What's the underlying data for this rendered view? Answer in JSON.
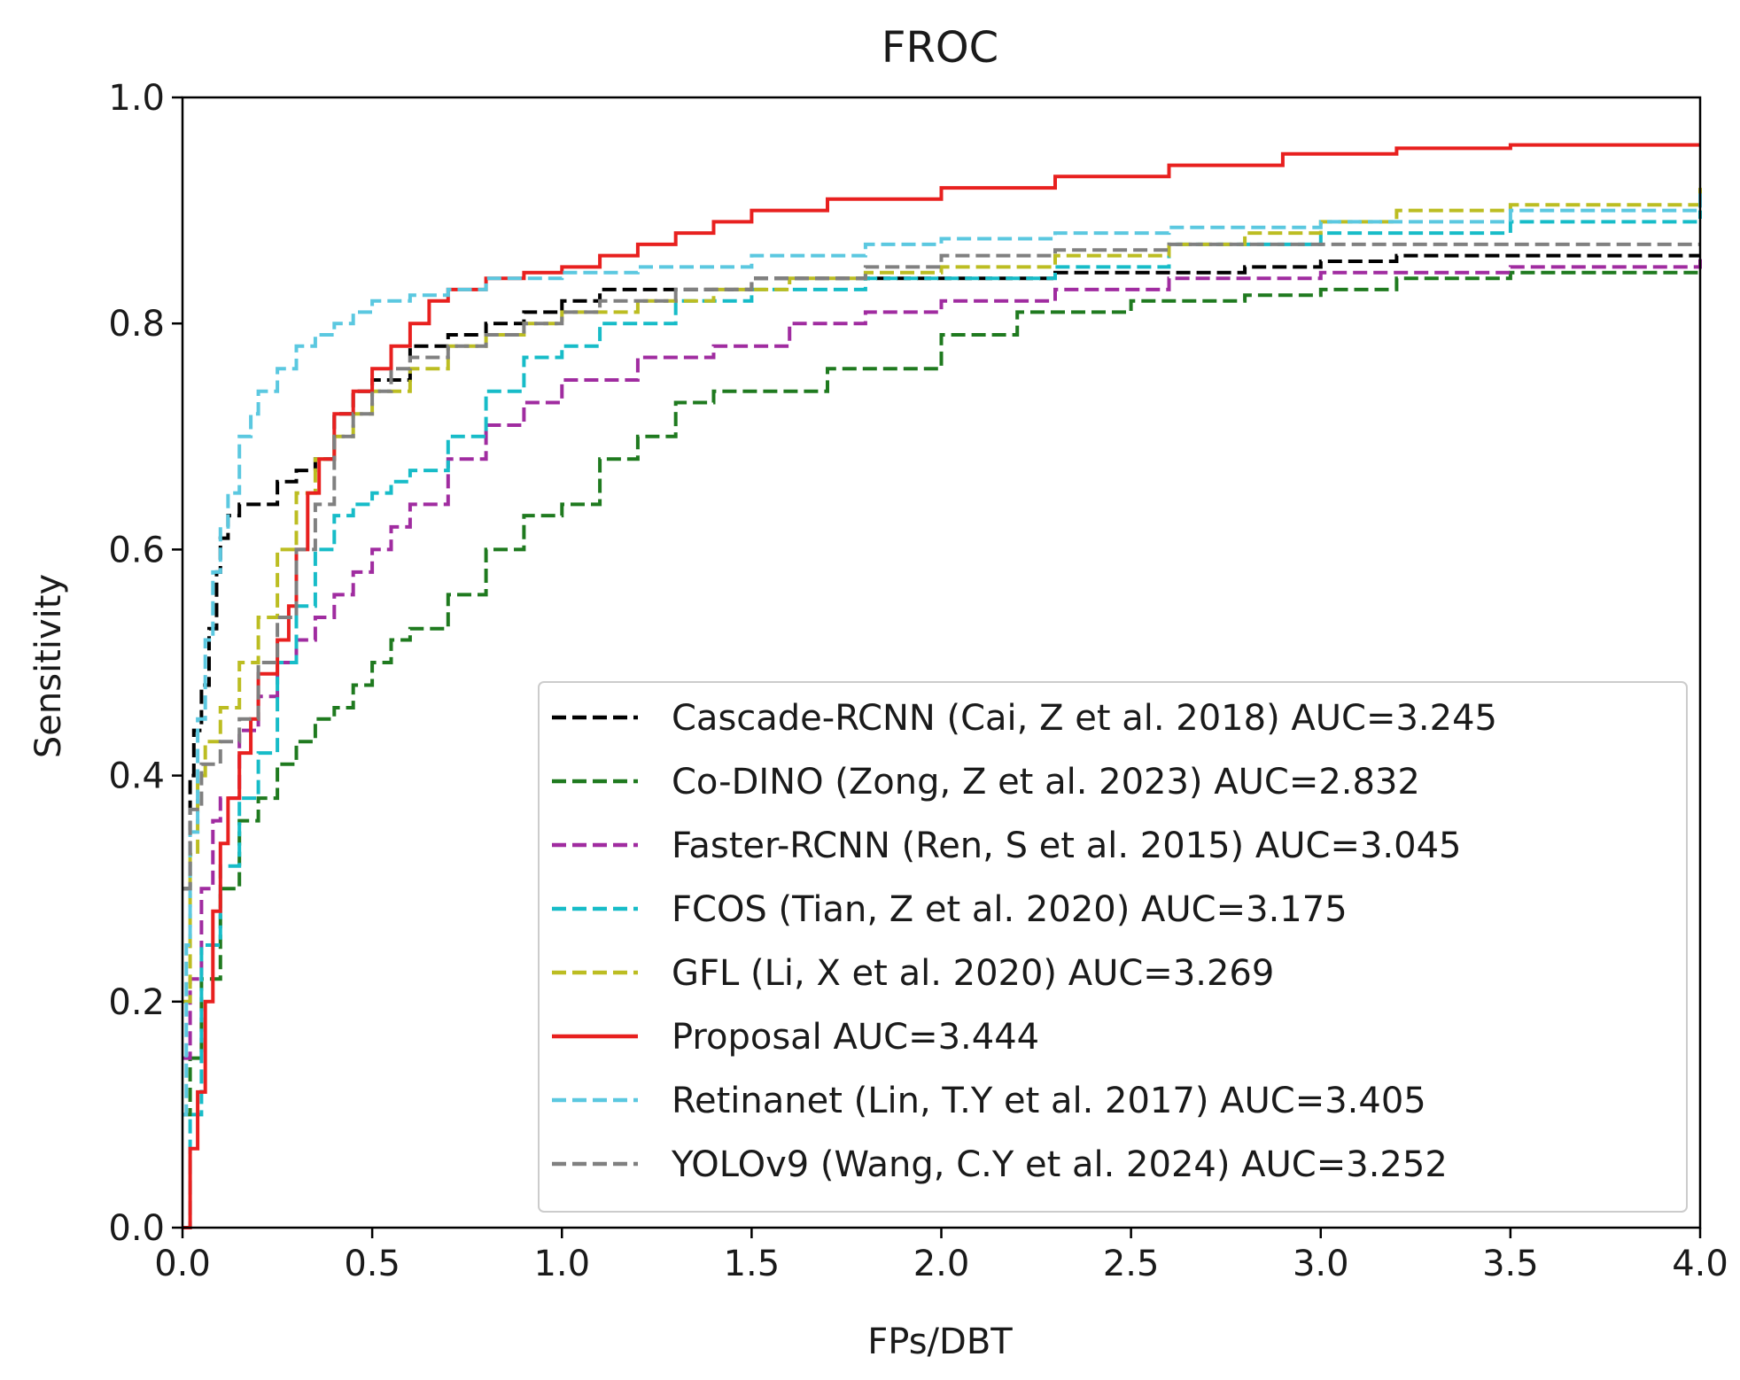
{
  "chart_data": {
    "type": "line",
    "title": "FROC",
    "xlabel": "FPs/DBT",
    "ylabel": "Sensitivity",
    "xlim": [
      0,
      4
    ],
    "ylim": [
      0,
      1
    ],
    "xticks": [
      "0.0",
      "0.5",
      "1.0",
      "1.5",
      "2.0",
      "2.5",
      "3.0",
      "3.5",
      "4.0"
    ],
    "xtick_values": [
      0,
      0.5,
      1,
      1.5,
      2,
      2.5,
      3,
      3.5,
      4
    ],
    "yticks": [
      "0.0",
      "0.2",
      "0.4",
      "0.6",
      "0.8",
      "1.0"
    ],
    "ytick_values": [
      0,
      0.2,
      0.4,
      0.6,
      0.8,
      1.0
    ],
    "grid": false,
    "legend_position": "lower-right",
    "series": [
      {
        "name": "Cascade-RCNN (Cai, Z et al. 2018) AUC=3.245",
        "color": "#000000",
        "dash": "dashed",
        "x": [
          0,
          0.02,
          0.03,
          0.05,
          0.07,
          0.09,
          0.1,
          0.12,
          0.15,
          0.2,
          0.25,
          0.3,
          0.35,
          0.4,
          0.45,
          0.5,
          0.6,
          0.7,
          0.8,
          0.9,
          1.0,
          1.1,
          1.3,
          1.5,
          1.7,
          2.0,
          2.3,
          2.5,
          2.8,
          3.0,
          3.2,
          3.5,
          4.0
        ],
        "y": [
          0.3,
          0.4,
          0.44,
          0.48,
          0.53,
          0.58,
          0.61,
          0.63,
          0.64,
          0.64,
          0.66,
          0.67,
          0.68,
          0.72,
          0.74,
          0.75,
          0.78,
          0.79,
          0.8,
          0.81,
          0.82,
          0.83,
          0.83,
          0.84,
          0.84,
          0.84,
          0.845,
          0.845,
          0.85,
          0.855,
          0.86,
          0.86,
          0.86
        ]
      },
      {
        "name": "Co-DINO (Zong, Z et al. 2023) AUC=2.832",
        "color": "#1f7a1f",
        "dash": "dashed",
        "x": [
          0,
          0.02,
          0.05,
          0.1,
          0.15,
          0.2,
          0.25,
          0.3,
          0.35,
          0.4,
          0.45,
          0.5,
          0.55,
          0.6,
          0.7,
          0.8,
          0.9,
          1.0,
          1.1,
          1.2,
          1.3,
          1.4,
          1.5,
          1.7,
          2.0,
          2.2,
          2.5,
          2.8,
          3.0,
          3.2,
          3.5,
          4.0
        ],
        "y": [
          0.1,
          0.15,
          0.22,
          0.3,
          0.36,
          0.38,
          0.41,
          0.43,
          0.45,
          0.46,
          0.48,
          0.5,
          0.52,
          0.53,
          0.56,
          0.6,
          0.63,
          0.64,
          0.68,
          0.7,
          0.73,
          0.74,
          0.74,
          0.76,
          0.79,
          0.81,
          0.82,
          0.825,
          0.83,
          0.84,
          0.845,
          0.85
        ]
      },
      {
        "name": "Faster-RCNN (Ren, S et al. 2015) AUC=3.045",
        "color": "#a02ca0",
        "dash": "dashed",
        "x": [
          0,
          0.02,
          0.05,
          0.08,
          0.1,
          0.15,
          0.2,
          0.25,
          0.3,
          0.35,
          0.4,
          0.45,
          0.5,
          0.55,
          0.6,
          0.7,
          0.8,
          0.9,
          1.0,
          1.2,
          1.4,
          1.6,
          1.8,
          2.0,
          2.3,
          2.6,
          3.0,
          3.5,
          4.0
        ],
        "y": [
          0.15,
          0.22,
          0.3,
          0.36,
          0.38,
          0.44,
          0.47,
          0.5,
          0.52,
          0.54,
          0.56,
          0.58,
          0.6,
          0.62,
          0.64,
          0.68,
          0.71,
          0.73,
          0.75,
          0.77,
          0.78,
          0.8,
          0.81,
          0.82,
          0.83,
          0.84,
          0.845,
          0.85,
          0.86
        ]
      },
      {
        "name": "FCOS (Tian, Z et al. 2020) AUC=3.175",
        "color": "#17bcc8",
        "dash": "dashed",
        "x": [
          0,
          0.02,
          0.05,
          0.1,
          0.15,
          0.2,
          0.25,
          0.3,
          0.35,
          0.4,
          0.45,
          0.5,
          0.55,
          0.6,
          0.7,
          0.8,
          0.9,
          1.0,
          1.1,
          1.3,
          1.5,
          1.8,
          2.0,
          2.3,
          2.6,
          3.0,
          3.5,
          4.0
        ],
        "y": [
          0.0,
          0.1,
          0.25,
          0.32,
          0.38,
          0.42,
          0.5,
          0.55,
          0.6,
          0.63,
          0.64,
          0.65,
          0.66,
          0.67,
          0.7,
          0.74,
          0.77,
          0.78,
          0.8,
          0.82,
          0.83,
          0.84,
          0.84,
          0.85,
          0.87,
          0.88,
          0.89,
          0.9
        ]
      },
      {
        "name": "GFL (Li, X et al. 2020) AUC=3.269",
        "color": "#bcbd22",
        "dash": "dashed",
        "x": [
          0,
          0.02,
          0.04,
          0.06,
          0.1,
          0.15,
          0.2,
          0.25,
          0.3,
          0.35,
          0.4,
          0.45,
          0.5,
          0.6,
          0.7,
          0.8,
          0.9,
          1.0,
          1.2,
          1.4,
          1.6,
          1.8,
          2.0,
          2.3,
          2.6,
          2.8,
          3.0,
          3.2,
          3.5,
          4.0
        ],
        "y": [
          0.2,
          0.33,
          0.4,
          0.43,
          0.46,
          0.5,
          0.54,
          0.6,
          0.65,
          0.68,
          0.7,
          0.72,
          0.74,
          0.76,
          0.78,
          0.79,
          0.8,
          0.81,
          0.82,
          0.83,
          0.84,
          0.845,
          0.85,
          0.86,
          0.87,
          0.88,
          0.89,
          0.9,
          0.905,
          0.92
        ]
      },
      {
        "name": "Proposal AUC=3.444",
        "color": "#e8201f",
        "dash": "solid",
        "x": [
          0,
          0.02,
          0.04,
          0.06,
          0.08,
          0.1,
          0.12,
          0.15,
          0.18,
          0.2,
          0.25,
          0.28,
          0.3,
          0.33,
          0.36,
          0.4,
          0.45,
          0.5,
          0.55,
          0.6,
          0.65,
          0.7,
          0.8,
          0.9,
          1.0,
          1.1,
          1.2,
          1.3,
          1.4,
          1.5,
          1.7,
          2.0,
          2.3,
          2.6,
          2.9,
          3.2,
          3.5,
          4.0
        ],
        "y": [
          0.0,
          0.07,
          0.12,
          0.2,
          0.28,
          0.34,
          0.38,
          0.42,
          0.45,
          0.49,
          0.52,
          0.55,
          0.6,
          0.65,
          0.68,
          0.72,
          0.74,
          0.76,
          0.78,
          0.8,
          0.82,
          0.83,
          0.84,
          0.845,
          0.85,
          0.86,
          0.87,
          0.88,
          0.89,
          0.9,
          0.91,
          0.92,
          0.93,
          0.94,
          0.95,
          0.955,
          0.958,
          0.958
        ]
      },
      {
        "name": "Retinanet (Lin, T.Y et al. 2017) AUC=3.405",
        "color": "#5bc8e0",
        "dash": "dashed",
        "x": [
          0,
          0.01,
          0.02,
          0.04,
          0.06,
          0.08,
          0.1,
          0.12,
          0.15,
          0.18,
          0.2,
          0.25,
          0.3,
          0.35,
          0.4,
          0.45,
          0.5,
          0.6,
          0.7,
          0.8,
          0.9,
          1.0,
          1.2,
          1.5,
          1.8,
          2.0,
          2.3,
          2.6,
          3.0,
          3.5,
          4.0
        ],
        "y": [
          0.1,
          0.25,
          0.35,
          0.45,
          0.52,
          0.58,
          0.62,
          0.65,
          0.7,
          0.72,
          0.74,
          0.76,
          0.78,
          0.79,
          0.8,
          0.81,
          0.82,
          0.825,
          0.83,
          0.84,
          0.84,
          0.845,
          0.85,
          0.86,
          0.87,
          0.875,
          0.88,
          0.885,
          0.89,
          0.9,
          0.92
        ]
      },
      {
        "name": "YOLOv9 (Wang, C.Y et al. 2024) AUC=3.252",
        "color": "#808080",
        "dash": "dashed",
        "x": [
          0,
          0.02,
          0.05,
          0.1,
          0.15,
          0.2,
          0.25,
          0.3,
          0.35,
          0.4,
          0.45,
          0.5,
          0.55,
          0.6,
          0.7,
          0.8,
          0.9,
          1.0,
          1.1,
          1.3,
          1.5,
          1.8,
          2.0,
          2.3,
          2.6,
          3.0,
          3.5,
          4.0
        ],
        "y": [
          0.3,
          0.37,
          0.41,
          0.43,
          0.45,
          0.5,
          0.54,
          0.6,
          0.64,
          0.7,
          0.72,
          0.74,
          0.76,
          0.77,
          0.78,
          0.79,
          0.8,
          0.81,
          0.82,
          0.83,
          0.84,
          0.85,
          0.86,
          0.865,
          0.87,
          0.87,
          0.87,
          0.87
        ]
      }
    ]
  }
}
